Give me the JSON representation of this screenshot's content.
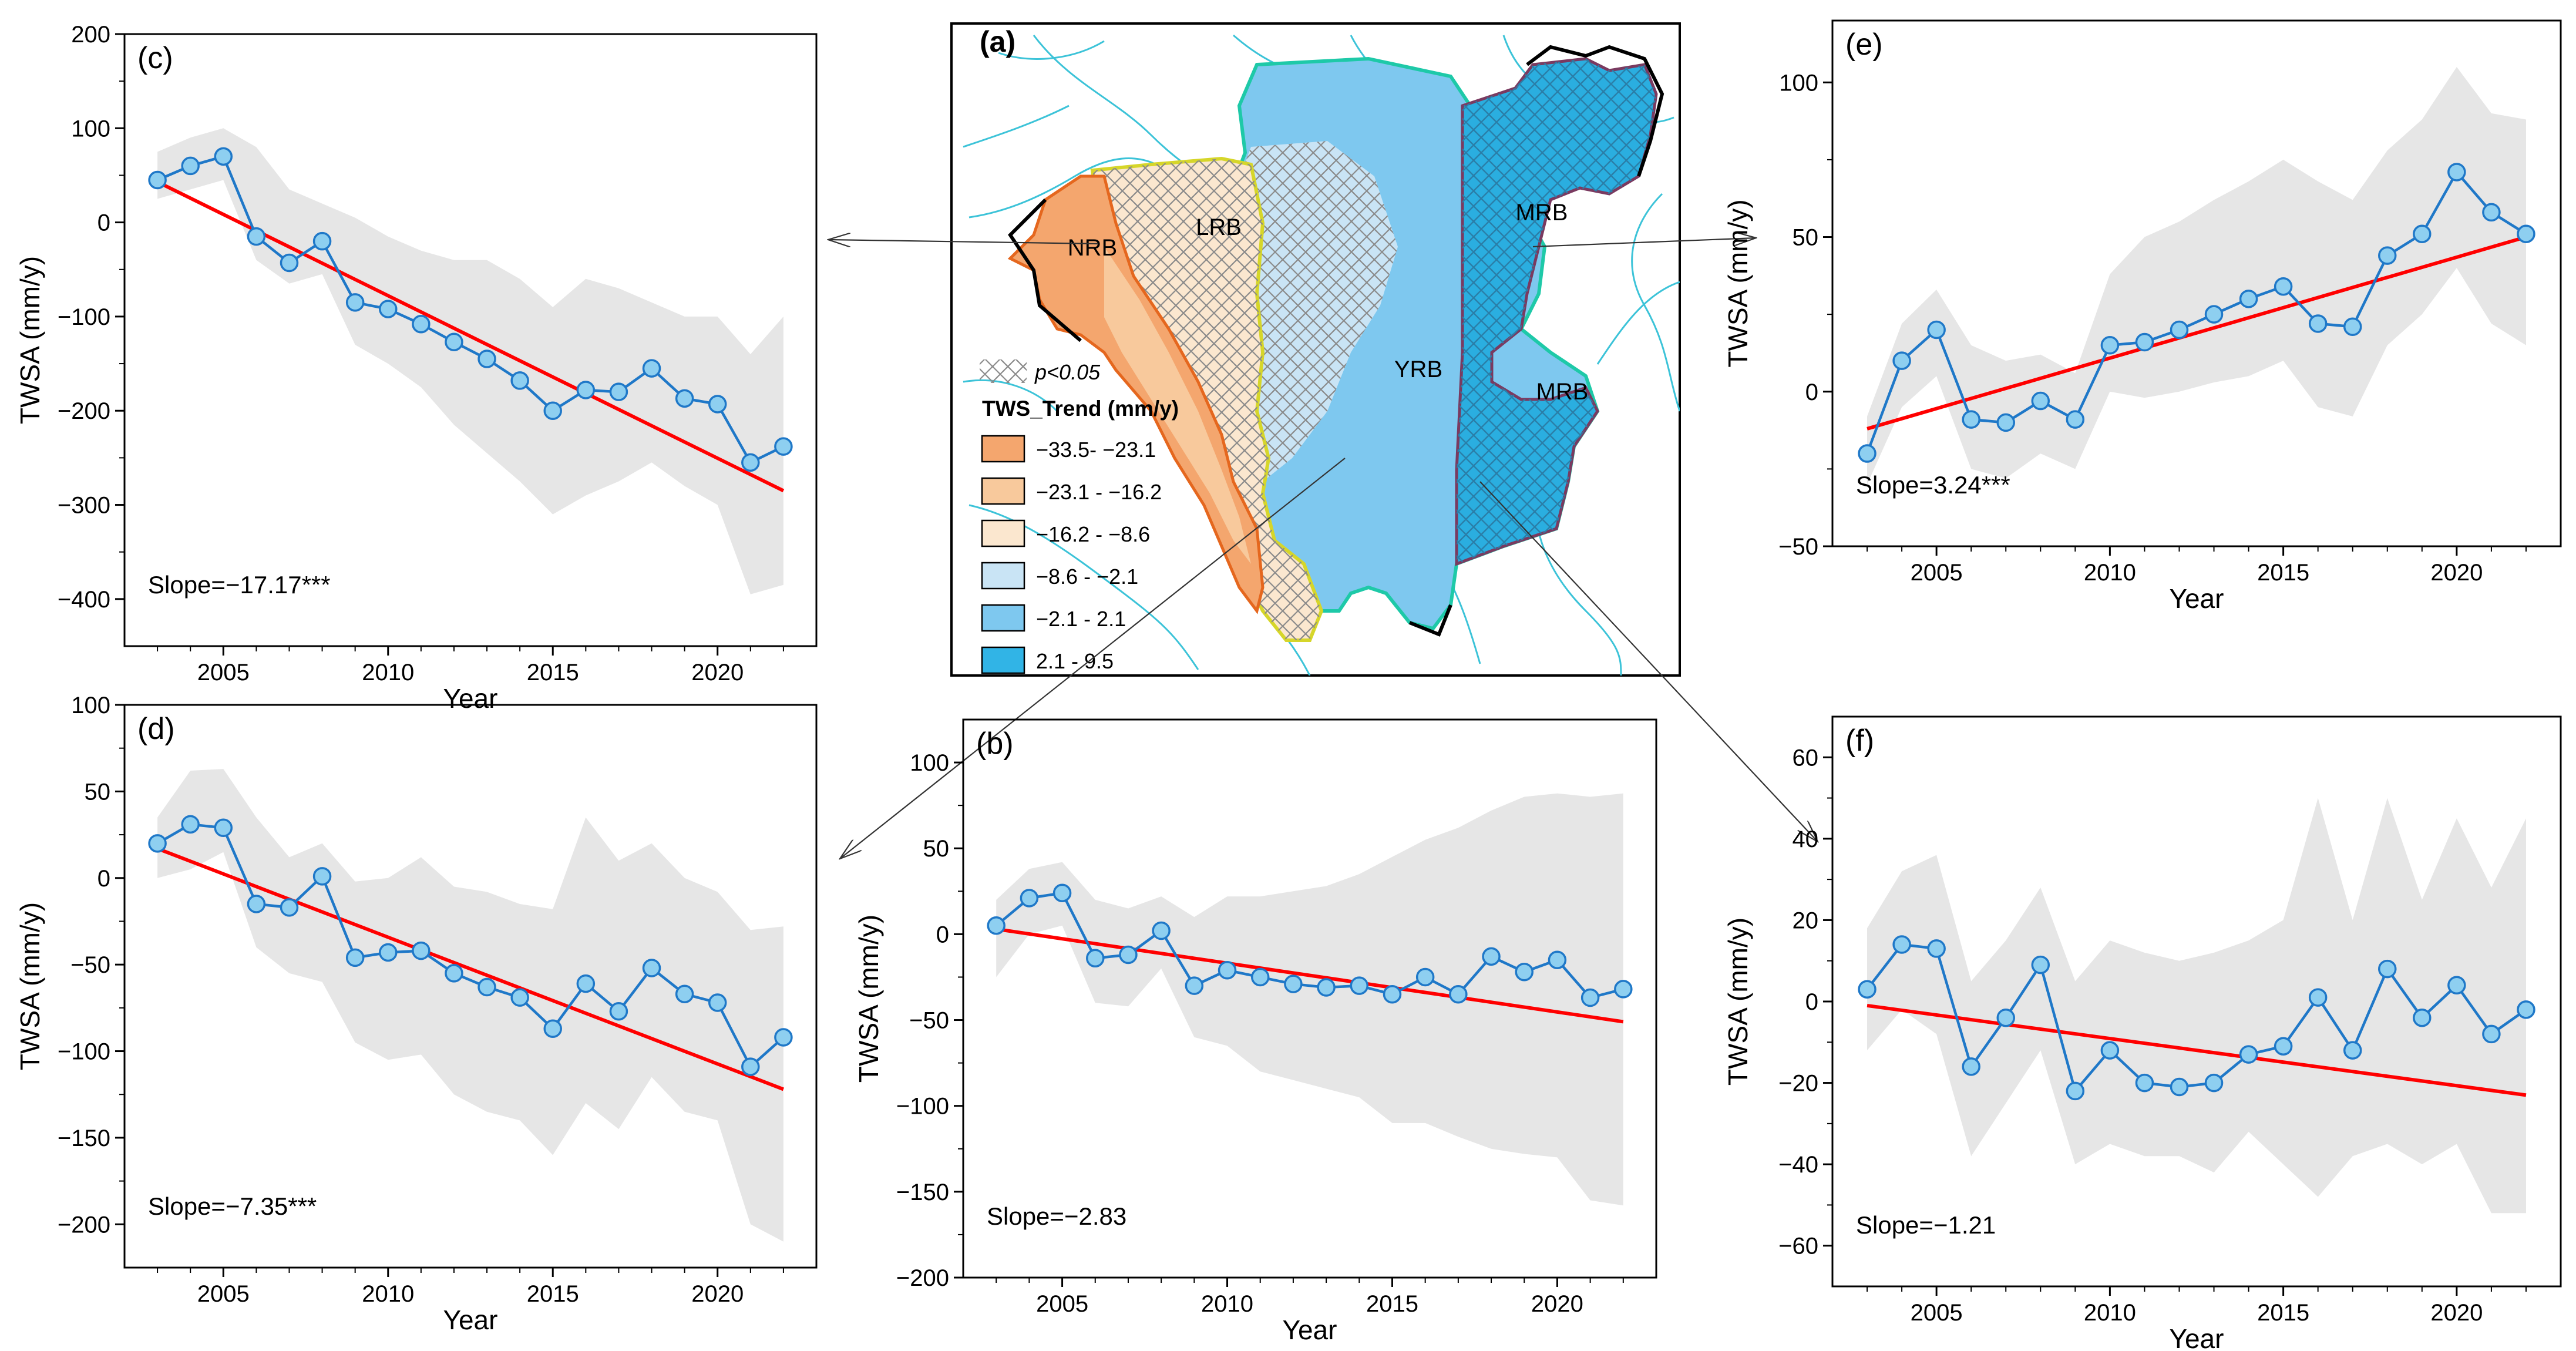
{
  "figure": {
    "xlabel": "Year",
    "ylabel": "TWSA (mm/y)"
  },
  "colors": {
    "series": "#1f78c8",
    "marker_fill": "#8ecff0",
    "trend": "#ff0000",
    "uncertainty_band": "#e6e6e6"
  },
  "chart_data": [
    {
      "id": "c",
      "panel_label": "(c)",
      "type": "line",
      "xlabel": "Year",
      "ylabel": "TWSA (mm/y)",
      "xlim": [
        2002,
        2023
      ],
      "ylim": [
        -450,
        200
      ],
      "x_ticks": [
        2005,
        2010,
        2015,
        2020
      ],
      "y_ticks": [
        -400,
        -300,
        -200,
        -100,
        0,
        100,
        200
      ],
      "x": [
        2003,
        2004,
        2005,
        2006,
        2007,
        2008,
        2009,
        2010,
        2011,
        2012,
        2013,
        2014,
        2015,
        2016,
        2017,
        2018,
        2019,
        2020,
        2021,
        2022
      ],
      "series": [
        {
          "values": [
            45,
            60,
            70,
            -15,
            -43,
            -20,
            -85,
            -92,
            -108,
            -127,
            -145,
            -168,
            -200,
            -178,
            -180,
            -155,
            -187,
            -193,
            -255,
            -238
          ]
        }
      ],
      "trend": {
        "start": [
          2003,
          43
        ],
        "end": [
          2022,
          -285
        ]
      },
      "band": {
        "upper": [
          75,
          90,
          100,
          80,
          35,
          20,
          5,
          -15,
          -30,
          -40,
          -40,
          -60,
          -90,
          -60,
          -70,
          -85,
          -100,
          -100,
          -140,
          -100
        ],
        "lower": [
          25,
          35,
          45,
          -40,
          -65,
          -55,
          -130,
          -150,
          -175,
          -215,
          -245,
          -275,
          -310,
          -290,
          -275,
          -255,
          -280,
          -300,
          -395,
          -385
        ]
      },
      "annotation": "Slope=−17.17***"
    },
    {
      "id": "d",
      "panel_label": "(d)",
      "type": "line",
      "xlabel": "Year",
      "ylabel": "TWSA (mm/y)",
      "xlim": [
        2002,
        2023
      ],
      "ylim": [
        -225,
        100
      ],
      "x_ticks": [
        2005,
        2010,
        2015,
        2020
      ],
      "y_ticks": [
        -200,
        -150,
        -100,
        -50,
        0,
        50,
        100
      ],
      "x": [
        2003,
        2004,
        2005,
        2006,
        2007,
        2008,
        2009,
        2010,
        2011,
        2012,
        2013,
        2014,
        2015,
        2016,
        2017,
        2018,
        2019,
        2020,
        2021,
        2022
      ],
      "series": [
        {
          "values": [
            20,
            31,
            29,
            -15,
            -17,
            1,
            -46,
            -43,
            -42,
            -55,
            -63,
            -69,
            -87,
            -61,
            -77,
            -52,
            -67,
            -72,
            -109,
            -92
          ]
        }
      ],
      "trend": {
        "start": [
          2003,
          17
        ],
        "end": [
          2022,
          -122
        ]
      },
      "band": {
        "upper": [
          35,
          62,
          63,
          35,
          12,
          20,
          -2,
          0,
          12,
          -5,
          -8,
          -15,
          -18,
          35,
          10,
          20,
          0,
          -8,
          -30,
          -28
        ],
        "lower": [
          0,
          5,
          15,
          -40,
          -55,
          -60,
          -95,
          -105,
          -102,
          -125,
          -135,
          -140,
          -160,
          -130,
          -145,
          -115,
          -135,
          -140,
          -200,
          -210
        ]
      },
      "annotation": "Slope=−7.35***"
    },
    {
      "id": "b",
      "panel_label": "(b)",
      "type": "line",
      "xlabel": "Year",
      "ylabel": "TWSA (mm/y)",
      "xlim": [
        2002,
        2023
      ],
      "ylim": [
        -200,
        125
      ],
      "x_ticks": [
        2005,
        2010,
        2015,
        2020
      ],
      "y_ticks": [
        -200,
        -150,
        -100,
        -50,
        0,
        50,
        100
      ],
      "x": [
        2003,
        2004,
        2005,
        2006,
        2007,
        2008,
        2009,
        2010,
        2011,
        2012,
        2013,
        2014,
        2015,
        2016,
        2017,
        2018,
        2019,
        2020,
        2021,
        2022
      ],
      "series": [
        {
          "values": [
            5,
            21,
            24,
            -14,
            -12,
            2,
            -30,
            -21,
            -25,
            -29,
            -31,
            -30,
            -35,
            -25,
            -35,
            -13,
            -22,
            -15,
            -37,
            -32
          ]
        }
      ],
      "trend": {
        "start": [
          2003,
          3
        ],
        "end": [
          2022,
          -51
        ]
      },
      "band": {
        "upper": [
          20,
          38,
          42,
          20,
          15,
          22,
          10,
          22,
          22,
          25,
          28,
          35,
          45,
          55,
          62,
          72,
          80,
          82,
          80,
          82
        ],
        "lower": [
          -25,
          0,
          5,
          -40,
          -42,
          -20,
          -60,
          -65,
          -80,
          -85,
          -90,
          -95,
          -110,
          -110,
          -118,
          -125,
          -128,
          -130,
          -155,
          -158
        ]
      },
      "annotation": "Slope=−2.83"
    },
    {
      "id": "e",
      "panel_label": "(e)",
      "type": "line",
      "xlabel": "Year",
      "ylabel": "TWSA (mm/y)",
      "xlim": [
        2002,
        2023
      ],
      "ylim": [
        -50,
        120
      ],
      "x_ticks": [
        2005,
        2010,
        2015,
        2020
      ],
      "y_ticks": [
        -50,
        0,
        50,
        100
      ],
      "x": [
        2003,
        2004,
        2005,
        2006,
        2007,
        2008,
        2009,
        2010,
        2011,
        2012,
        2013,
        2014,
        2015,
        2016,
        2017,
        2018,
        2019,
        2020,
        2021,
        2022
      ],
      "series": [
        {
          "values": [
            -20,
            10,
            20,
            -9,
            -10,
            -3,
            -9,
            15,
            16,
            20,
            25,
            30,
            34,
            22,
            21,
            44,
            51,
            71,
            58,
            51
          ]
        }
      ],
      "trend": {
        "start": [
          2003,
          -12
        ],
        "end": [
          2022,
          50
        ]
      },
      "band": {
        "upper": [
          -8,
          22,
          33,
          15,
          10,
          12,
          6,
          38,
          50,
          55,
          62,
          68,
          75,
          68,
          62,
          78,
          88,
          105,
          90,
          88
        ],
        "lower": [
          -30,
          -5,
          5,
          -25,
          -28,
          -20,
          -25,
          0,
          -2,
          0,
          3,
          5,
          10,
          -5,
          -8,
          15,
          25,
          40,
          22,
          15
        ]
      },
      "annotation": "Slope=3.24***"
    },
    {
      "id": "f",
      "panel_label": "(f)",
      "type": "line",
      "xlabel": "Year",
      "ylabel": "TWSA (mm/y)",
      "xlim": [
        2002,
        2023
      ],
      "ylim": [
        -70,
        70
      ],
      "x_ticks": [
        2005,
        2010,
        2015,
        2020
      ],
      "y_ticks": [
        -60,
        -40,
        -20,
        0,
        20,
        40,
        60
      ],
      "x": [
        2003,
        2004,
        2005,
        2006,
        2007,
        2008,
        2009,
        2010,
        2011,
        2012,
        2013,
        2014,
        2015,
        2016,
        2017,
        2018,
        2019,
        2020,
        2021,
        2022
      ],
      "series": [
        {
          "values": [
            3,
            14,
            13,
            -16,
            -4,
            9,
            -22,
            -12,
            -20,
            -21,
            -20,
            -13,
            -11,
            1,
            -12,
            8,
            -4,
            4,
            -8,
            -2
          ]
        }
      ],
      "trend": {
        "start": [
          2003,
          -1
        ],
        "end": [
          2022,
          -23
        ]
      },
      "band": {
        "upper": [
          18,
          32,
          36,
          5,
          15,
          28,
          5,
          15,
          12,
          10,
          12,
          15,
          20,
          50,
          20,
          50,
          25,
          45,
          28,
          45
        ],
        "lower": [
          -12,
          -2,
          -8,
          -38,
          -25,
          -12,
          -40,
          -35,
          -38,
          -38,
          -42,
          -32,
          -40,
          -48,
          -38,
          -35,
          -40,
          -35,
          -52,
          -52
        ]
      },
      "annotation": "Slope=−1.21"
    }
  ],
  "map": {
    "panel_label": "(a)",
    "regions": [
      "NRB",
      "LRB",
      "YRB",
      "MRB",
      "MRB"
    ],
    "significance_label": "p<0.05",
    "legend_title": "TWS_Trend (mm/y)",
    "legend_items": [
      {
        "label": "−33.5- −23.1",
        "color": "#f4a66e"
      },
      {
        "label": "−23.1 - −16.2",
        "color": "#f8c99c"
      },
      {
        "label": "−16.2 - −8.6",
        "color": "#fbe7cf"
      },
      {
        "label": "−8.6 - −2.1",
        "color": "#c9e4f5"
      },
      {
        "label": "−2.1 - 2.1",
        "color": "#7ec8ef"
      },
      {
        "label": "2.1 - 9.5",
        "color": "#31b4e6"
      }
    ]
  }
}
